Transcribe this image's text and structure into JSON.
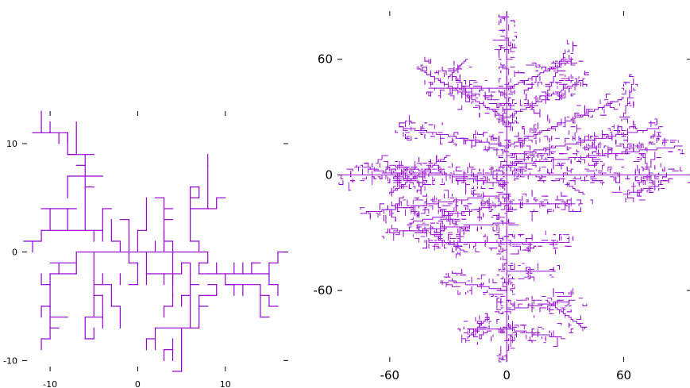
{
  "chart_data": [
    {
      "type": "line",
      "description_kind": "diffusion-limited aggregation tree on a lattice",
      "title": "",
      "xlabel": "",
      "ylabel": "",
      "xlim": [
        -13,
        17
      ],
      "ylim": [
        -11,
        13
      ],
      "x_ticks": [
        -10,
        0,
        10
      ],
      "y_ticks": [
        -10,
        0,
        10
      ],
      "x_tick_labels": [
        "-10",
        "0",
        "10"
      ],
      "y_tick_labels": [
        "-10",
        "0",
        "10"
      ],
      "color": "#9400d3",
      "grid": false,
      "segments": [
        [
          -13,
          1,
          -11,
          1
        ],
        [
          -12,
          0,
          -12,
          1
        ],
        [
          -11,
          1,
          -11,
          2
        ],
        [
          -11,
          2,
          -6,
          2
        ],
        [
          -10,
          2,
          -10,
          4
        ],
        [
          -11,
          4,
          -7,
          4
        ],
        [
          -8,
          2,
          -8,
          4
        ],
        [
          -6,
          2,
          -6,
          7
        ],
        [
          -6,
          7,
          -8,
          7
        ],
        [
          -8,
          5,
          -8,
          7
        ],
        [
          -6,
          2,
          -4,
          2
        ],
        [
          -5,
          2,
          -5,
          1
        ],
        [
          -4,
          2,
          -4,
          4
        ],
        [
          -4,
          4,
          -3,
          4
        ],
        [
          -4,
          2,
          -4,
          1
        ],
        [
          -6,
          7,
          -6,
          9
        ],
        [
          -6,
          8,
          -7,
          8
        ],
        [
          -6,
          9,
          -8,
          9
        ],
        [
          -8,
          9,
          -8,
          11
        ],
        [
          -8,
          11,
          -10,
          11
        ],
        [
          -10,
          11,
          -11,
          11
        ],
        [
          -11,
          11,
          -11,
          13
        ],
        [
          -11,
          11,
          -12,
          11
        ],
        [
          -10,
          11,
          -10,
          12
        ],
        [
          -9,
          11,
          -9,
          10
        ],
        [
          -8,
          9,
          -7,
          9
        ],
        [
          -7,
          9,
          -7,
          12
        ],
        [
          -6,
          9,
          -5,
          9
        ],
        [
          -8,
          11,
          -8,
          10
        ],
        [
          -6,
          7,
          -4,
          7
        ],
        [
          -6,
          6,
          -5,
          6
        ],
        [
          -7,
          0,
          4,
          0
        ],
        [
          -7,
          0,
          -7,
          -2
        ],
        [
          -7,
          -1,
          -10,
          -1
        ],
        [
          -9,
          -1,
          -9,
          -2
        ],
        [
          -7,
          -2,
          -10,
          -2
        ],
        [
          -10,
          -2,
          -10,
          -3
        ],
        [
          -10,
          -3,
          -11,
          -3
        ],
        [
          -11,
          -3,
          -11,
          -2
        ],
        [
          -10,
          -3,
          -10,
          -5
        ],
        [
          -10,
          -5,
          -11,
          -5
        ],
        [
          -11,
          -5,
          -11,
          -6
        ],
        [
          -10,
          -5,
          -10,
          -8
        ],
        [
          -10,
          -8,
          -11,
          -8
        ],
        [
          -11,
          -8,
          -11,
          -9
        ],
        [
          -10,
          -6,
          -8,
          -6
        ],
        [
          -10,
          -7,
          -9,
          -7
        ],
        [
          -5,
          0,
          -5,
          -4
        ],
        [
          -5,
          -4,
          -5,
          -6
        ],
        [
          -5,
          -4,
          -4,
          -4
        ],
        [
          -4,
          -4,
          -4,
          -6
        ],
        [
          -4,
          -6,
          -6,
          -6
        ],
        [
          -6,
          -6,
          -6,
          -8
        ],
        [
          -6,
          -8,
          -5,
          -8
        ],
        [
          -5,
          -8,
          -5,
          -7
        ],
        [
          -4,
          -6,
          -4,
          -7
        ],
        [
          -5,
          -3,
          -3,
          -3
        ],
        [
          -3,
          -3,
          -3,
          -5
        ],
        [
          -3,
          -5,
          -2,
          -5
        ],
        [
          -2,
          -5,
          -2,
          -7
        ],
        [
          -2,
          -3,
          -2,
          -2
        ],
        [
          -4,
          -3,
          -4,
          -2
        ],
        [
          -2,
          0,
          -2,
          1
        ],
        [
          -2,
          1,
          -3,
          1
        ],
        [
          -3,
          1,
          -3,
          3
        ],
        [
          -1,
          0,
          -1,
          3
        ],
        [
          -1,
          3,
          -2,
          3
        ],
        [
          0,
          0,
          0,
          2
        ],
        [
          0,
          2,
          1,
          2
        ],
        [
          1,
          2,
          1,
          4
        ],
        [
          1,
          4,
          1,
          5
        ],
        [
          1,
          0,
          1,
          -2
        ],
        [
          1,
          -2,
          3,
          -2
        ],
        [
          3,
          -2,
          3,
          -3
        ],
        [
          1,
          -2,
          1,
          -3
        ],
        [
          2,
          0,
          2,
          1
        ],
        [
          3,
          0,
          3,
          2
        ],
        [
          4,
          0,
          4,
          1
        ],
        [
          4,
          1,
          3,
          1
        ],
        [
          -1,
          0,
          -1,
          -1
        ],
        [
          -1,
          -1,
          0,
          -1
        ],
        [
          0,
          -1,
          0,
          -3
        ],
        [
          0,
          -3,
          -1,
          -3
        ],
        [
          4,
          0,
          4,
          -2
        ],
        [
          4,
          -2,
          3,
          -2
        ],
        [
          4,
          -2,
          4,
          -3
        ],
        [
          3,
          0,
          3,
          5
        ],
        [
          3,
          5,
          2,
          5
        ],
        [
          3,
          3,
          4,
          3
        ],
        [
          3,
          4,
          4,
          4
        ],
        [
          4,
          0,
          7,
          0
        ],
        [
          5,
          -1,
          6,
          -1
        ],
        [
          5,
          -1,
          5,
          -2
        ],
        [
          5,
          -2,
          4,
          -2
        ],
        [
          4,
          -2,
          4,
          -4
        ],
        [
          4,
          -4,
          4,
          -5
        ],
        [
          4,
          -5,
          3,
          -5
        ],
        [
          3,
          -5,
          3,
          -6
        ],
        [
          6,
          -1,
          6,
          -2
        ],
        [
          6,
          -2,
          6,
          -4
        ],
        [
          6,
          -4,
          5,
          -4
        ],
        [
          5,
          -4,
          5,
          -5
        ],
        [
          6,
          -4,
          6,
          -7
        ],
        [
          6,
          -7,
          5,
          -7
        ],
        [
          5,
          -7,
          5,
          -8
        ],
        [
          5,
          -8,
          5,
          -11
        ],
        [
          5,
          -11,
          4,
          -11
        ],
        [
          5,
          -7,
          2,
          -7
        ],
        [
          2,
          -7,
          2,
          -9
        ],
        [
          2,
          -8,
          1,
          -8
        ],
        [
          1,
          -8,
          1,
          -9
        ],
        [
          3,
          -9,
          3,
          -10
        ],
        [
          4,
          -8,
          4,
          -10
        ],
        [
          4,
          -9,
          3,
          -9
        ],
        [
          6,
          -7,
          7,
          -7
        ],
        [
          7,
          -7,
          7,
          -4
        ],
        [
          7,
          -4,
          8,
          -4
        ],
        [
          7,
          -5,
          8,
          -5
        ],
        [
          6,
          -3,
          7,
          -3
        ],
        [
          7,
          0,
          7,
          1
        ],
        [
          7,
          1,
          6,
          1
        ],
        [
          6,
          1,
          6,
          4
        ],
        [
          6,
          4,
          6,
          5
        ],
        [
          6,
          4,
          8,
          4
        ],
        [
          8,
          4,
          8,
          8
        ],
        [
          8,
          8,
          8,
          9
        ],
        [
          8,
          4,
          9,
          4
        ],
        [
          9,
          4,
          9,
          5
        ],
        [
          9,
          5,
          10,
          5
        ],
        [
          6,
          5,
          6,
          6
        ],
        [
          6,
          5,
          7,
          5
        ],
        [
          7,
          5,
          7,
          6
        ],
        [
          7,
          6,
          6,
          6
        ],
        [
          7,
          0,
          8,
          0
        ],
        [
          8,
          0,
          8,
          -1
        ],
        [
          8,
          -1,
          7,
          -1
        ],
        [
          7,
          -1,
          7,
          -2
        ],
        [
          7,
          -2,
          8,
          -2
        ],
        [
          8,
          -2,
          10,
          -2
        ],
        [
          10,
          -2,
          10,
          -3
        ],
        [
          10,
          -3,
          14,
          -3
        ],
        [
          14,
          -3,
          14,
          -4
        ],
        [
          14,
          -4,
          15,
          -4
        ],
        [
          15,
          -4,
          15,
          -5
        ],
        [
          15,
          -5,
          16,
          -5
        ],
        [
          14,
          -4,
          14,
          -6
        ],
        [
          14,
          -6,
          15,
          -6
        ],
        [
          12,
          -3,
          12,
          -4
        ],
        [
          11,
          -2,
          11,
          -1
        ],
        [
          10,
          -3,
          11,
          -3
        ],
        [
          11,
          -3,
          11,
          -4
        ],
        [
          12,
          -2,
          15,
          -2
        ],
        [
          15,
          -2,
          15,
          -1
        ],
        [
          15,
          -1,
          16,
          -1
        ],
        [
          16,
          -1,
          16,
          0
        ],
        [
          16,
          0,
          17,
          0
        ],
        [
          15,
          -2,
          15,
          -3
        ],
        [
          13,
          -2,
          13,
          -1
        ],
        [
          9,
          -3,
          9,
          -4
        ],
        [
          9,
          -4,
          8,
          -4
        ],
        [
          9,
          -2,
          9,
          -1
        ],
        [
          10,
          -2,
          12,
          -2
        ],
        [
          15,
          -3,
          16,
          -3
        ],
        [
          16,
          -3,
          16,
          -4
        ],
        [
          8,
          -3,
          9,
          -3
        ],
        [
          12,
          -1,
          12,
          -2
        ],
        [
          13,
          -1,
          14,
          -1
        ]
      ]
    },
    {
      "type": "line",
      "description_kind": "diffusion-limited aggregation tree on a lattice",
      "title": "",
      "xlabel": "",
      "ylabel": "",
      "xlim": [
        -86,
        94
      ],
      "ylim": [
        -97,
        85
      ],
      "x_ticks": [
        -60,
        0,
        60
      ],
      "y_ticks": [
        -60,
        0,
        60
      ],
      "x_tick_labels": [
        "-60",
        "0",
        "60"
      ],
      "y_tick_labels": [
        "-60",
        "0",
        "60"
      ],
      "color": "#9400d3",
      "grid": false,
      "trunks": [
        [
          0,
          0,
          0,
          84
        ],
        [
          0,
          0,
          0,
          -97
        ],
        [
          0,
          0,
          -86,
          0
        ],
        [
          0,
          0,
          94,
          0
        ],
        [
          0,
          45,
          -40,
          45
        ],
        [
          0,
          45,
          34,
          60
        ],
        [
          0,
          30,
          -45,
          55
        ],
        [
          0,
          30,
          40,
          50
        ],
        [
          0,
          15,
          -55,
          25
        ],
        [
          0,
          15,
          60,
          40
        ],
        [
          0,
          10,
          80,
          25
        ],
        [
          0,
          5,
          90,
          15
        ],
        [
          0,
          -5,
          -60,
          5
        ],
        [
          0,
          -10,
          -75,
          -20
        ],
        [
          0,
          -15,
          -50,
          -25
        ],
        [
          0,
          -15,
          35,
          -15
        ],
        [
          0,
          -25,
          -60,
          -30
        ],
        [
          0,
          -35,
          -40,
          -35
        ],
        [
          0,
          -35,
          32,
          -35
        ],
        [
          0,
          -50,
          25,
          -50
        ],
        [
          0,
          -60,
          -30,
          -55
        ],
        [
          0,
          -70,
          35,
          -65
        ],
        [
          0,
          -80,
          -20,
          -80
        ],
        [
          0,
          -80,
          30,
          -85
        ],
        [
          20,
          40,
          30,
          65
        ],
        [
          -20,
          60,
          -30,
          50
        ],
        [
          60,
          30,
          65,
          50
        ],
        [
          70,
          10,
          75,
          -5
        ],
        [
          -30,
          10,
          -60,
          -10
        ],
        [
          -40,
          -5,
          -75,
          5
        ],
        [
          30,
          -5,
          40,
          -10
        ],
        [
          60,
          -10,
          80,
          -5
        ],
        [
          -20,
          -40,
          -40,
          -30
        ],
        [
          20,
          -65,
          40,
          -80
        ],
        [
          -10,
          -75,
          -20,
          -85
        ]
      ],
      "segment_count": 2400,
      "segment_seed": 4242,
      "fringe_spread": 9
    }
  ]
}
